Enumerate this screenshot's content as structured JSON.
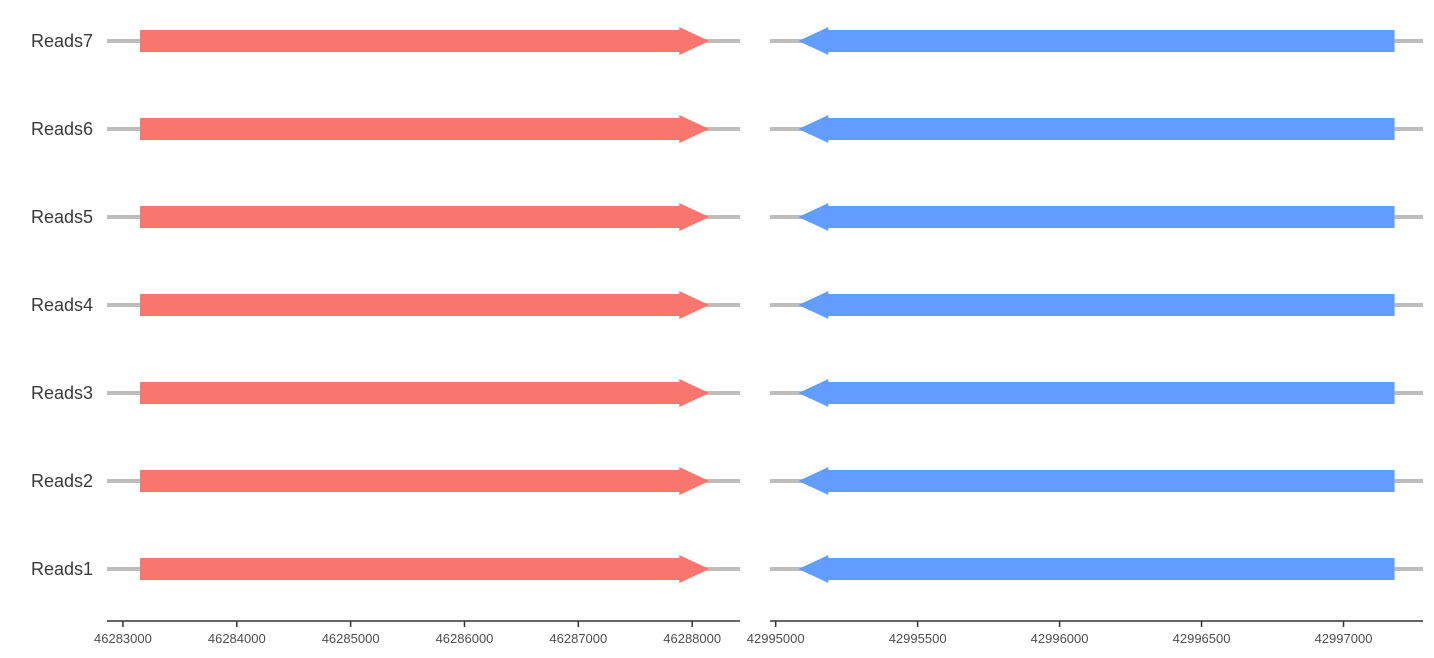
{
  "chart_data": {
    "type": "gene-arrow",
    "rows": [
      "Reads1",
      "Reads2",
      "Reads3",
      "Reads4",
      "Reads5",
      "Reads6",
      "Reads7"
    ],
    "colors": {
      "forward": "#F8766D",
      "reverse": "#619CFF",
      "backbone": "#bdbdbd",
      "axis": "#333333"
    },
    "panels": [
      {
        "xlim": [
          46282860,
          46288420
        ],
        "ticks": [
          46283000,
          46284000,
          46285000,
          46286000,
          46287000,
          46288000
        ],
        "tick_labels": [
          "46283000",
          "46284000",
          "46285000",
          "46286000",
          "46287000",
          "46288000"
        ],
        "features": [
          {
            "row": "Reads1",
            "start": 46283150,
            "end": 46288150,
            "strand": "forward"
          },
          {
            "row": "Reads2",
            "start": 46283150,
            "end": 46288150,
            "strand": "forward"
          },
          {
            "row": "Reads3",
            "start": 46283150,
            "end": 46288150,
            "strand": "forward"
          },
          {
            "row": "Reads4",
            "start": 46283150,
            "end": 46288150,
            "strand": "forward"
          },
          {
            "row": "Reads5",
            "start": 46283150,
            "end": 46288150,
            "strand": "forward"
          },
          {
            "row": "Reads6",
            "start": 46283150,
            "end": 46288150,
            "strand": "forward"
          },
          {
            "row": "Reads7",
            "start": 46283150,
            "end": 46288150,
            "strand": "forward"
          }
        ]
      },
      {
        "xlim": [
          42994980,
          42997280
        ],
        "ticks": [
          42995000,
          42995500,
          42996000,
          42996500,
          42997000
        ],
        "tick_labels": [
          "42995000",
          "42995500",
          "42996000",
          "42996500",
          "42997000"
        ],
        "features": [
          {
            "row": "Reads1",
            "start": 42997180,
            "end": 42995080,
            "strand": "reverse"
          },
          {
            "row": "Reads2",
            "start": 42997180,
            "end": 42995080,
            "strand": "reverse"
          },
          {
            "row": "Reads3",
            "start": 42997180,
            "end": 42995080,
            "strand": "reverse"
          },
          {
            "row": "Reads4",
            "start": 42997180,
            "end": 42995080,
            "strand": "reverse"
          },
          {
            "row": "Reads5",
            "start": 42997180,
            "end": 42995080,
            "strand": "reverse"
          },
          {
            "row": "Reads6",
            "start": 42997180,
            "end": 42995080,
            "strand": "reverse"
          },
          {
            "row": "Reads7",
            "start": 42997180,
            "end": 42995080,
            "strand": "reverse"
          }
        ]
      }
    ]
  }
}
